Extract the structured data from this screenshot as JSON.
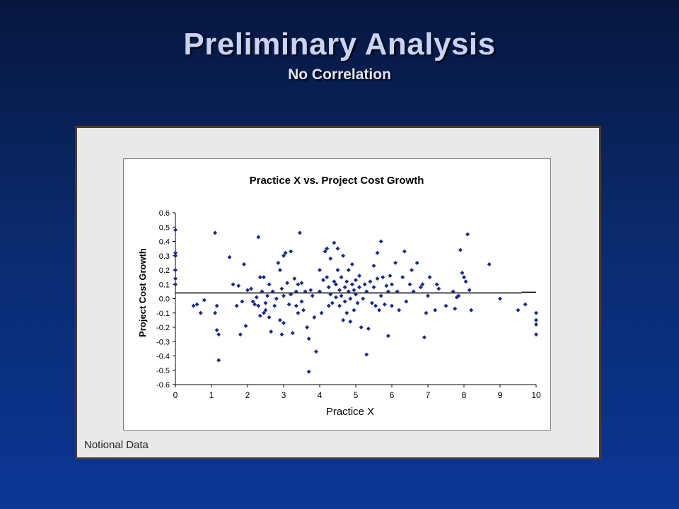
{
  "slide": {
    "title": "Preliminary Analysis",
    "subtitle": "No Correlation",
    "footnote": "Notional Data"
  },
  "chart_data": {
    "type": "scatter",
    "title": "Practice X vs. Project Cost Growth",
    "xlabel": "Practice X",
    "ylabel": "Project Cost Growth",
    "xlim": [
      0,
      10
    ],
    "ylim": [
      -0.6,
      0.6
    ],
    "x_ticks": [
      "0",
      "1",
      "2",
      "3",
      "4",
      "5",
      "6",
      "7",
      "8",
      "9",
      "10"
    ],
    "y_ticks": [
      "0.6",
      "0.5",
      "0.4",
      "0.3",
      "0.2",
      "0.1",
      "0.0",
      "-0.1",
      "-0.2",
      "-0.3",
      "-0.4",
      "-0.5",
      "-0.6"
    ],
    "grid": false,
    "legend": "none",
    "marker_color": "#1a2a8c",
    "trendline": {
      "x": [
        0,
        9.6
      ],
      "y": [
        0.04,
        0.04
      ]
    },
    "trendline_extension": {
      "x": [
        9.6,
        10
      ],
      "y": [
        0.045,
        0.045
      ]
    },
    "points": [
      [
        0,
        0.48
      ],
      [
        0,
        0.32
      ],
      [
        0,
        0.3
      ],
      [
        0,
        0.2
      ],
      [
        0,
        0.14
      ],
      [
        0,
        0.1
      ],
      [
        0.5,
        -0.05
      ],
      [
        0.6,
        -0.04
      ],
      [
        0.7,
        -0.1
      ],
      [
        0.8,
        -0.01
      ],
      [
        1.1,
        0.46
      ],
      [
        1.1,
        -0.1
      ],
      [
        1.15,
        -0.05
      ],
      [
        1.15,
        -0.22
      ],
      [
        1.2,
        -0.25
      ],
      [
        1.2,
        -0.43
      ],
      [
        1.5,
        0.29
      ],
      [
        1.6,
        0.1
      ],
      [
        1.7,
        -0.05
      ],
      [
        1.75,
        0.09
      ],
      [
        1.8,
        -0.25
      ],
      [
        1.85,
        -0.02
      ],
      [
        1.9,
        0.24
      ],
      [
        1.95,
        -0.19
      ],
      [
        2.0,
        0.06
      ],
      [
        2.1,
        0.07
      ],
      [
        2.15,
        -0.02
      ],
      [
        2.2,
        -0.04
      ],
      [
        2.25,
        0.01
      ],
      [
        2.3,
        0.43
      ],
      [
        2.3,
        -0.05
      ],
      [
        2.35,
        0.15
      ],
      [
        2.35,
        -0.12
      ],
      [
        2.4,
        0.05
      ],
      [
        2.45,
        0.15
      ],
      [
        2.45,
        -0.1
      ],
      [
        2.5,
        -0.03
      ],
      [
        2.5,
        -0.08
      ],
      [
        2.55,
        0.02
      ],
      [
        2.6,
        0.1
      ],
      [
        2.6,
        -0.13
      ],
      [
        2.65,
        -0.23
      ],
      [
        2.7,
        0.05
      ],
      [
        2.75,
        -0.05
      ],
      [
        2.8,
        0.0
      ],
      [
        2.85,
        0.25
      ],
      [
        2.9,
        0.2
      ],
      [
        2.9,
        -0.15
      ],
      [
        2.95,
        0.07
      ],
      [
        2.95,
        -0.25
      ],
      [
        3.0,
        0.3
      ],
      [
        3.0,
        0.02
      ],
      [
        3.0,
        -0.17
      ],
      [
        3.05,
        0.32
      ],
      [
        3.1,
        0.11
      ],
      [
        3.15,
        -0.04
      ],
      [
        3.2,
        0.33
      ],
      [
        3.2,
        0.03
      ],
      [
        3.25,
        -0.24
      ],
      [
        3.3,
        0.14
      ],
      [
        3.35,
        0.05
      ],
      [
        3.35,
        -0.05
      ],
      [
        3.4,
        0.1
      ],
      [
        3.4,
        -0.1
      ],
      [
        3.45,
        0.46
      ],
      [
        3.5,
        0.11
      ],
      [
        3.5,
        -0.02
      ],
      [
        3.55,
        -0.08
      ],
      [
        3.6,
        0.05
      ],
      [
        3.65,
        -0.2
      ],
      [
        3.7,
        -0.51
      ],
      [
        3.7,
        -0.28
      ],
      [
        3.75,
        0.06
      ],
      [
        3.8,
        0.02
      ],
      [
        3.85,
        -0.13
      ],
      [
        3.9,
        -0.37
      ],
      [
        4.0,
        0.05
      ],
      [
        4.0,
        0.2
      ],
      [
        4.05,
        -0.1
      ],
      [
        4.1,
        0.13
      ],
      [
        4.15,
        0.33
      ],
      [
        4.2,
        0.35
      ],
      [
        4.2,
        0.15
      ],
      [
        4.25,
        0.08
      ],
      [
        4.25,
        -0.05
      ],
      [
        4.3,
        0.28
      ],
      [
        4.3,
        0.03
      ],
      [
        4.35,
        -0.03
      ],
      [
        4.4,
        0.39
      ],
      [
        4.4,
        0.12
      ],
      [
        4.45,
        0.1
      ],
      [
        4.45,
        0.01
      ],
      [
        4.5,
        0.35
      ],
      [
        4.5,
        0.2
      ],
      [
        4.55,
        0.06
      ],
      [
        4.55,
        -0.05
      ],
      [
        4.6,
        0.15
      ],
      [
        4.6,
        0.02
      ],
      [
        4.65,
        0.3
      ],
      [
        4.65,
        -0.15
      ],
      [
        4.7,
        0.08
      ],
      [
        4.7,
        -0.02
      ],
      [
        4.75,
        0.12
      ],
      [
        4.75,
        -0.1
      ],
      [
        4.8,
        0.05
      ],
      [
        4.8,
        0.2
      ],
      [
        4.85,
        0.0
      ],
      [
        4.85,
        -0.16
      ],
      [
        4.9,
        0.1
      ],
      [
        4.9,
        0.24
      ],
      [
        4.95,
        0.06
      ],
      [
        4.95,
        -0.08
      ],
      [
        5.0,
        0.13
      ],
      [
        5.0,
        0.03
      ],
      [
        5.05,
        -0.03
      ],
      [
        5.1,
        0.16
      ],
      [
        5.1,
        0.08
      ],
      [
        5.15,
        -0.2
      ],
      [
        5.2,
        0.0
      ],
      [
        5.25,
        0.1
      ],
      [
        5.3,
        -0.39
      ],
      [
        5.3,
        0.05
      ],
      [
        5.35,
        -0.21
      ],
      [
        5.4,
        0.12
      ],
      [
        5.45,
        -0.03
      ],
      [
        5.5,
        0.23
      ],
      [
        5.5,
        0.08
      ],
      [
        5.55,
        -0.05
      ],
      [
        5.6,
        0.32
      ],
      [
        5.6,
        0.14
      ],
      [
        5.65,
        -0.08
      ],
      [
        5.7,
        0.4
      ],
      [
        5.7,
        0.02
      ],
      [
        5.75,
        0.15
      ],
      [
        5.8,
        -0.04
      ],
      [
        5.85,
        0.09
      ],
      [
        5.9,
        0.05
      ],
      [
        5.9,
        -0.26
      ],
      [
        5.95,
        0.16
      ],
      [
        6.0,
        0.1
      ],
      [
        6.0,
        -0.05
      ],
      [
        6.1,
        0.25
      ],
      [
        6.15,
        0.05
      ],
      [
        6.2,
        -0.08
      ],
      [
        6.3,
        0.15
      ],
      [
        6.35,
        0.33
      ],
      [
        6.4,
        -0.02
      ],
      [
        6.5,
        0.1
      ],
      [
        6.55,
        0.2
      ],
      [
        6.6,
        0.05
      ],
      [
        6.7,
        0.25
      ],
      [
        6.8,
        0.08
      ],
      [
        6.85,
        0.1
      ],
      [
        6.9,
        -0.27
      ],
      [
        6.95,
        -0.1
      ],
      [
        7.0,
        0.02
      ],
      [
        7.05,
        0.15
      ],
      [
        7.2,
        -0.08
      ],
      [
        7.25,
        0.1
      ],
      [
        7.3,
        0.07
      ],
      [
        7.5,
        -0.05
      ],
      [
        7.7,
        0.05
      ],
      [
        7.75,
        -0.07
      ],
      [
        7.8,
        0.01
      ],
      [
        7.85,
        0.02
      ],
      [
        7.9,
        0.34
      ],
      [
        7.95,
        0.18
      ],
      [
        8.0,
        0.15
      ],
      [
        8.05,
        0.12
      ],
      [
        8.1,
        0.45
      ],
      [
        8.15,
        0.06
      ],
      [
        8.2,
        -0.08
      ],
      [
        8.7,
        0.24
      ],
      [
        9.0,
        0.0
      ],
      [
        9.5,
        -0.08
      ],
      [
        9.7,
        -0.04
      ],
      [
        10.0,
        -0.1
      ],
      [
        10.0,
        -0.15
      ],
      [
        10.0,
        -0.18
      ],
      [
        10.0,
        -0.25
      ]
    ]
  }
}
